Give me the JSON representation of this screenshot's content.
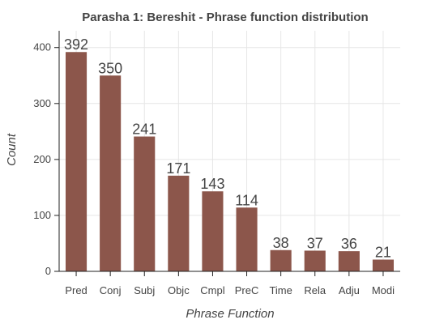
{
  "chart_data": {
    "type": "bar",
    "title": "Parasha 1: Bereshit - Phrase function distribution",
    "xlabel": "Phrase Function",
    "ylabel": "Count",
    "categories": [
      "Pred",
      "Conj",
      "Subj",
      "Objc",
      "Cmpl",
      "PreC",
      "Time",
      "Rela",
      "Adju",
      "Modi"
    ],
    "values": [
      392,
      350,
      241,
      171,
      143,
      114,
      38,
      37,
      36,
      21
    ],
    "y_ticks": [
      0,
      100,
      200,
      300,
      400
    ],
    "ylim": [
      0,
      430
    ],
    "grid": true,
    "bar_color": "#8c564b"
  }
}
